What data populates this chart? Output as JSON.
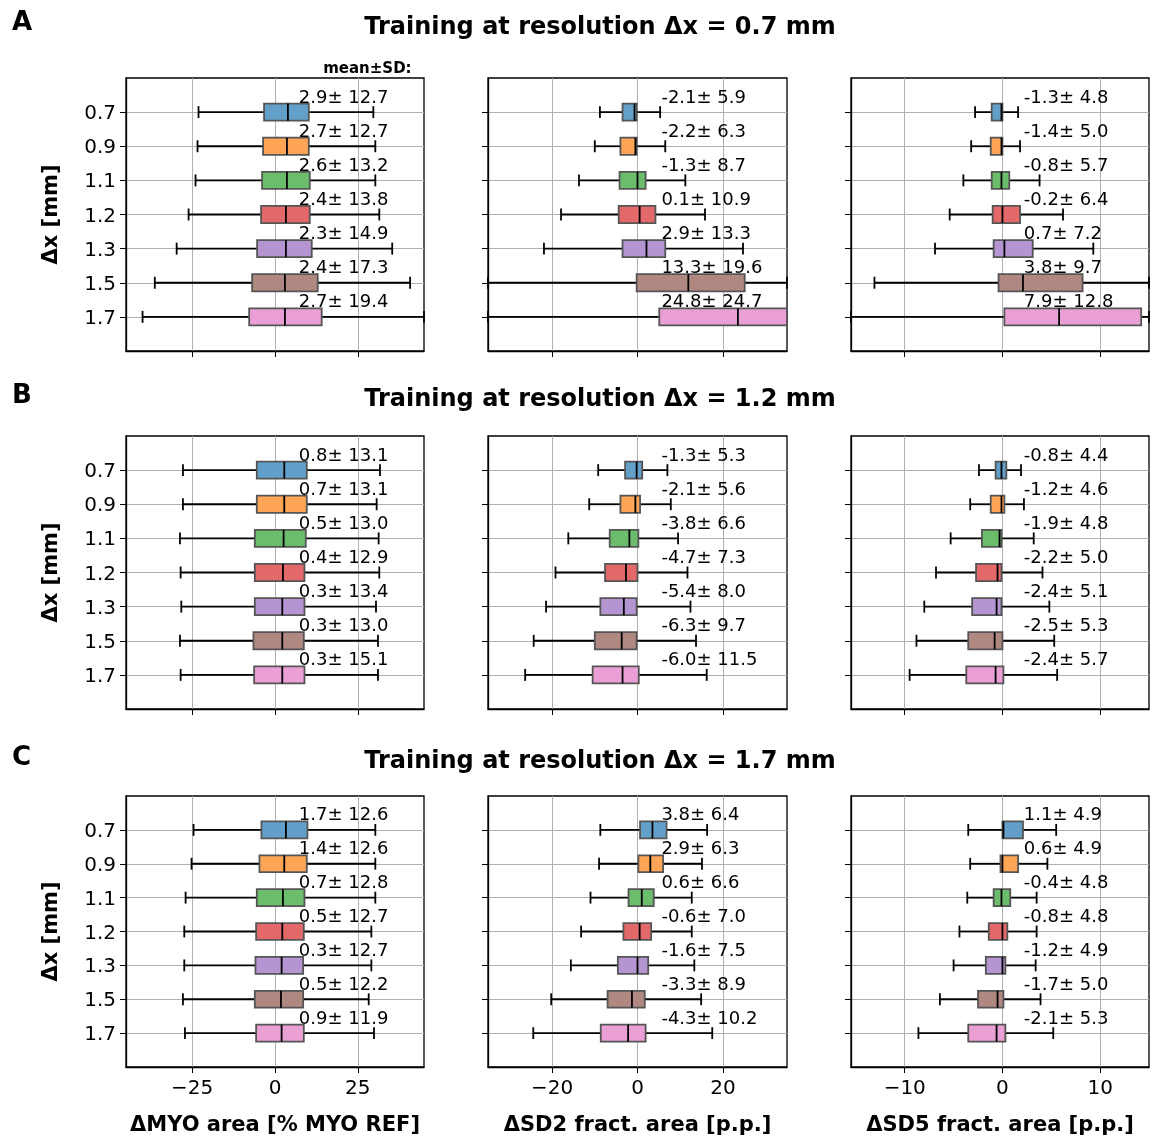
{
  "chart_data": [
    {
      "type": "box",
      "orientation": "horizontal",
      "categories": [
        "0.7",
        "0.9",
        "1.1",
        "1.2",
        "1.3",
        "1.5",
        "1.7"
      ],
      "colors": [
        "#62a0ca",
        "#ffa556",
        "#6bbd6b",
        "#e26869",
        "#b495d1",
        "#af8981",
        "#eba0d5"
      ],
      "xlim": [
        -45,
        45
      ],
      "xticks": [
        -25,
        0,
        25
      ],
      "grid": true,
      "tick_labels": "y",
      "ylabel": "Δx [mm]",
      "annotations": [
        "A",
        "mean±SD:"
      ],
      "value_labels": [
        "2.9± 12.7",
        "2.7± 12.7",
        "2.6± 13.2",
        "2.4± 13.8",
        "2.3± 14.9",
        "2.4± 17.3",
        "2.7± 19.4"
      ],
      "boxes": [
        {
          "low": -23.1,
          "q1": -3.3,
          "median": 3.9,
          "q3": 10.2,
          "high": 29.7
        },
        {
          "low": -23.4,
          "q1": -3.6,
          "median": 3.6,
          "q3": 10.2,
          "high": 30.3
        },
        {
          "low": -24,
          "q1": -3.9,
          "median": 3.6,
          "q3": 10.5,
          "high": 30.3
        },
        {
          "low": -26.1,
          "q1": -4.2,
          "median": 3.3,
          "q3": 10.5,
          "high": 31.5
        },
        {
          "low": -29.7,
          "q1": -5.4,
          "median": 3.3,
          "q3": 11.1,
          "high": 35.4
        },
        {
          "low": -36.3,
          "q1": -6.9,
          "median": 3,
          "q3": 12.9,
          "high": 40.8
        },
        {
          "low": -40,
          "q1": -7.8,
          "median": 3,
          "q3": 14.1,
          "high": 45
        }
      ]
    },
    {
      "type": "box",
      "orientation": "horizontal",
      "title": "Training at resolution Δx = 0.7 mm",
      "categories": [
        "0.7",
        "0.9",
        "1.1",
        "1.2",
        "1.3",
        "1.5",
        "1.7"
      ],
      "colors": [
        "#62a0ca",
        "#ffa556",
        "#6bbd6b",
        "#e26869",
        "#b495d1",
        "#af8981",
        "#eba0d5"
      ],
      "xlim": [
        -35,
        35
      ],
      "xticks": [
        -20,
        0,
        20
      ],
      "grid": true,
      "tick_labels": false,
      "value_labels": [
        "-2.1± 5.9",
        "-2.2± 6.3",
        "-1.3± 8.7",
        "0.1± 10.9",
        "2.9± 13.3",
        "13.3± 19.6",
        "24.8± 24.7"
      ],
      "boxes": [
        {
          "low": -8.8,
          "q1": -3.5,
          "median": -0.7,
          "q3": -0.2,
          "high": 5.3
        },
        {
          "low": -10,
          "q1": -4,
          "median": -0.5,
          "q3": -0.2,
          "high": 6.5
        },
        {
          "low": -13.7,
          "q1": -4.2,
          "median": 0,
          "q3": 1.9,
          "high": 11.2
        },
        {
          "low": -17.9,
          "q1": -4.4,
          "median": 0.5,
          "q3": 4.2,
          "high": 15.8
        },
        {
          "low": -21.9,
          "q1": -3.5,
          "median": 2.1,
          "q3": 6.5,
          "high": 24.7
        },
        {
          "low": -35,
          "q1": -0.2,
          "median": 11.9,
          "q3": 25.1,
          "high": 35
        },
        {
          "low": -35,
          "q1": 5.1,
          "median": 23.5,
          "q3": 35,
          "high": 35
        }
      ]
    },
    {
      "type": "box",
      "orientation": "horizontal",
      "categories": [
        "0.7",
        "0.9",
        "1.1",
        "1.2",
        "1.3",
        "1.5",
        "1.7"
      ],
      "colors": [
        "#62a0ca",
        "#ffa556",
        "#6bbd6b",
        "#e26869",
        "#b495d1",
        "#af8981",
        "#eba0d5"
      ],
      "xlim": [
        -15.5,
        15
      ],
      "xticks": [
        -10,
        0,
        10
      ],
      "grid": true,
      "tick_labels": false,
      "value_labels": [
        "-1.3± 4.8",
        "-1.4± 5.0",
        "-0.8± 5.7",
        "-0.2± 6.4",
        "0.7± 7.2",
        "3.8± 9.7",
        "7.9± 12.8"
      ],
      "boxes": [
        {
          "low": -2.8,
          "q1": -1.1,
          "median": -0.1,
          "q3": 0,
          "high": 1.6
        },
        {
          "low": -3.2,
          "q1": -1.2,
          "median": -0.1,
          "q3": 0,
          "high": 1.8
        },
        {
          "low": -4,
          "q1": -1.1,
          "median": -0.1,
          "q3": 0.7,
          "high": 3.8
        },
        {
          "low": -5.4,
          "q1": -1,
          "median": 0,
          "q3": 1.8,
          "high": 6.2
        },
        {
          "low": -6.9,
          "q1": -0.9,
          "median": 0.2,
          "q3": 3.1,
          "high": 9.3
        },
        {
          "low": -13.1,
          "q1": -0.4,
          "median": 2.1,
          "q3": 8.2,
          "high": 15
        },
        {
          "low": -15.5,
          "q1": 0.2,
          "median": 5.8,
          "q3": 14.2,
          "high": 15
        }
      ]
    },
    {
      "type": "box",
      "orientation": "horizontal",
      "categories": [
        "0.7",
        "0.9",
        "1.1",
        "1.2",
        "1.3",
        "1.5",
        "1.7"
      ],
      "colors": [
        "#62a0ca",
        "#ffa556",
        "#6bbd6b",
        "#e26869",
        "#b495d1",
        "#af8981",
        "#eba0d5"
      ],
      "xlim": [
        -45,
        45
      ],
      "xticks": [
        -25,
        0,
        25
      ],
      "grid": true,
      "tick_labels": "y",
      "ylabel": "Δx [mm]",
      "annotations": [
        "B"
      ],
      "value_labels": [
        "0.8± 13.1",
        "0.7± 13.1",
        "0.5± 13.0",
        "0.4± 12.9",
        "0.3± 13.4",
        "0.3± 13.0",
        "0.3± 15.1"
      ],
      "boxes": [
        {
          "low": -27.8,
          "q1": -5.5,
          "median": 2.8,
          "q3": 9.6,
          "high": 31.7
        },
        {
          "low": -27.8,
          "q1": -5.5,
          "median": 2.8,
          "q3": 9.6,
          "high": 30.7
        },
        {
          "low": -28.7,
          "q1": -6.1,
          "median": 2.6,
          "q3": 9.3,
          "high": 31.3
        },
        {
          "low": -28.5,
          "q1": -6.1,
          "median": 2.4,
          "q3": 8.9,
          "high": 31.5
        },
        {
          "low": -28.3,
          "q1": -6.1,
          "median": 2.2,
          "q3": 8.9,
          "high": 30.5
        },
        {
          "low": -28.7,
          "q1": -6.5,
          "median": 2.2,
          "q3": 8.7,
          "high": 31.1
        },
        {
          "low": -28.5,
          "q1": -6.3,
          "median": 2.2,
          "q3": 8.9,
          "high": 31.1
        }
      ]
    },
    {
      "type": "box",
      "orientation": "horizontal",
      "title": "Training at resolution Δx = 1.2 mm",
      "categories": [
        "0.7",
        "0.9",
        "1.1",
        "1.2",
        "1.3",
        "1.5",
        "1.7"
      ],
      "colors": [
        "#62a0ca",
        "#ffa556",
        "#6bbd6b",
        "#e26869",
        "#b495d1",
        "#af8981",
        "#eba0d5"
      ],
      "xlim": [
        -35,
        35
      ],
      "xticks": [
        -20,
        0,
        20
      ],
      "grid": true,
      "tick_labels": false,
      "value_labels": [
        "-1.3± 5.3",
        "-2.1± 5.6",
        "-3.8± 6.6",
        "-4.7± 7.3",
        "-5.4± 8.0",
        "-6.3± 9.7",
        "-6.0± 11.5"
      ],
      "boxes": [
        {
          "low": -9.2,
          "q1": -2.9,
          "median": -0.2,
          "q3": 1.1,
          "high": 7
        },
        {
          "low": -11.3,
          "q1": -4,
          "median": -0.5,
          "q3": 0.6,
          "high": 7.8
        },
        {
          "low": -16.2,
          "q1": -6.5,
          "median": -1.9,
          "q3": 0.2,
          "high": 9.5
        },
        {
          "low": -19.2,
          "q1": -7.6,
          "median": -2.7,
          "q3": 0,
          "high": 11.7
        },
        {
          "low": -21.4,
          "q1": -8.7,
          "median": -3.2,
          "q3": -0.2,
          "high": 12.4
        },
        {
          "low": -24.3,
          "q1": -10,
          "median": -3.7,
          "q3": -0.2,
          "high": 13.7
        },
        {
          "low": -26.3,
          "q1": -10.5,
          "median": -3.5,
          "q3": 0.3,
          "high": 16.2
        }
      ]
    },
    {
      "type": "box",
      "orientation": "horizontal",
      "categories": [
        "0.7",
        "0.9",
        "1.1",
        "1.2",
        "1.3",
        "1.5",
        "1.7"
      ],
      "colors": [
        "#62a0ca",
        "#ffa556",
        "#6bbd6b",
        "#e26869",
        "#b495d1",
        "#af8981",
        "#eba0d5"
      ],
      "xlim": [
        -15.5,
        15
      ],
      "xticks": [
        -10,
        0,
        10
      ],
      "grid": true,
      "tick_labels": false,
      "value_labels": [
        "-0.8± 4.4",
        "-1.2± 4.6",
        "-1.9± 4.8",
        "-2.2± 5.0",
        "-2.4± 5.1",
        "-2.5± 5.3",
        "-2.4± 5.7"
      ],
      "boxes": [
        {
          "low": -2.4,
          "q1": -0.7,
          "median": -0.1,
          "q3": 0.4,
          "high": 1.9
        },
        {
          "low": -3.3,
          "q1": -1.2,
          "median": -0.1,
          "q3": 0.2,
          "high": 2.2
        },
        {
          "low": -5.3,
          "q1": -2.1,
          "median": -0.3,
          "q3": -0.1,
          "high": 3.2
        },
        {
          "low": -6.8,
          "q1": -2.7,
          "median": -0.5,
          "q3": -0.1,
          "high": 4.1
        },
        {
          "low": -8,
          "q1": -3.1,
          "median": -0.6,
          "q3": -0.1,
          "high": 4.8
        },
        {
          "low": -8.8,
          "q1": -3.5,
          "median": -0.8,
          "q3": 0,
          "high": 5.3
        },
        {
          "low": -9.5,
          "q1": -3.7,
          "median": -0.7,
          "q3": 0.1,
          "high": 5.6
        }
      ]
    },
    {
      "type": "box",
      "orientation": "horizontal",
      "categories": [
        "0.7",
        "0.9",
        "1.1",
        "1.2",
        "1.3",
        "1.5",
        "1.7"
      ],
      "colors": [
        "#62a0ca",
        "#ffa556",
        "#6bbd6b",
        "#e26869",
        "#b495d1",
        "#af8981",
        "#eba0d5"
      ],
      "xlim": [
        -45,
        45
      ],
      "xticks": [
        -25,
        0,
        25
      ],
      "grid": true,
      "ylabel": "Δx [mm]",
      "xlabel": "ΔMYO area [% MYO REF]",
      "annotations": [
        "C"
      ],
      "value_labels": [
        "1.7± 12.6",
        "1.4± 12.6",
        "0.7± 12.8",
        "0.5± 12.7",
        "0.3± 12.7",
        "0.5± 12.2",
        "0.9± 11.9"
      ],
      "boxes": [
        {
          "low": -24.6,
          "q1": -4.1,
          "median": 3.3,
          "q3": 9.8,
          "high": 30.3
        },
        {
          "low": -25.2,
          "q1": -4.7,
          "median": 2.8,
          "q3": 9.6,
          "high": 30.3
        },
        {
          "low": -27,
          "q1": -5.5,
          "median": 2.4,
          "q3": 8.9,
          "high": 30.3
        },
        {
          "low": -27.4,
          "q1": -5.7,
          "median": 2.2,
          "q3": 8.7,
          "high": 29.1
        },
        {
          "low": -27.4,
          "q1": -5.9,
          "median": 2,
          "q3": 8.5,
          "high": 29.1
        },
        {
          "low": -27.8,
          "q1": -6.1,
          "median": 1.8,
          "q3": 8.5,
          "high": 28.3
        },
        {
          "low": -27.2,
          "q1": -5.7,
          "median": 2,
          "q3": 8.7,
          "high": 29.9
        }
      ]
    },
    {
      "type": "box",
      "orientation": "horizontal",
      "title": "Training at resolution Δx = 1.7 mm",
      "categories": [
        "0.7",
        "0.9",
        "1.1",
        "1.2",
        "1.3",
        "1.5",
        "1.7"
      ],
      "colors": [
        "#62a0ca",
        "#ffa556",
        "#6bbd6b",
        "#e26869",
        "#b495d1",
        "#af8981",
        "#eba0d5"
      ],
      "xlim": [
        -35,
        35
      ],
      "xticks": [
        -20,
        0,
        20
      ],
      "grid": true,
      "tick_labels": "x",
      "xlabel": "ΔSD2 fract. area [p.p.]",
      "value_labels": [
        "3.8± 6.4",
        "2.9± 6.3",
        "0.6± 6.6",
        "-0.6± 7.0",
        "-1.6± 7.5",
        "-3.3± 8.9",
        "-4.3± 10.2"
      ],
      "boxes": [
        {
          "low": -8.7,
          "q1": 0.6,
          "median": 3.5,
          "q3": 6.8,
          "high": 16.3
        },
        {
          "low": -9,
          "q1": 0.2,
          "median": 3,
          "q3": 6,
          "high": 15.1
        },
        {
          "low": -11,
          "q1": -2.1,
          "median": 1,
          "q3": 3.8,
          "high": 12.7
        },
        {
          "low": -13.2,
          "q1": -3.3,
          "median": 0.5,
          "q3": 3.2,
          "high": 12.7
        },
        {
          "low": -15.6,
          "q1": -4.6,
          "median": 0,
          "q3": 2.5,
          "high": 13.3
        },
        {
          "low": -20.2,
          "q1": -7,
          "median": -1.3,
          "q3": 1.7,
          "high": 14.9
        },
        {
          "low": -24.4,
          "q1": -8.6,
          "median": -2.2,
          "q3": 1.9,
          "high": 17.5
        }
      ]
    },
    {
      "type": "box",
      "orientation": "horizontal",
      "categories": [
        "0.7",
        "0.9",
        "1.1",
        "1.2",
        "1.3",
        "1.5",
        "1.7"
      ],
      "colors": [
        "#62a0ca",
        "#ffa556",
        "#6bbd6b",
        "#e26869",
        "#b495d1",
        "#af8981",
        "#eba0d5"
      ],
      "xlim": [
        -15.5,
        15
      ],
      "xticks": [
        -10,
        0,
        10
      ],
      "grid": true,
      "tick_labels": "x",
      "xlabel": "ΔSD5 fract. area [p.p.]",
      "value_labels": [
        "1.1± 4.9",
        "0.6± 4.9",
        "-0.4± 4.8",
        "-0.8± 4.8",
        "-1.2± 4.9",
        "-1.7± 5.0",
        "-2.1± 5.3"
      ],
      "boxes": [
        {
          "low": -3.5,
          "q1": 0,
          "median": 0.1,
          "q3": 2.1,
          "high": 5.5
        },
        {
          "low": -3.3,
          "q1": -0.2,
          "median": 0,
          "q3": 1.6,
          "high": 4.6
        },
        {
          "low": -3.6,
          "q1": -0.9,
          "median": -0.1,
          "q3": 0.8,
          "high": 3.5
        },
        {
          "low": -4.4,
          "q1": -1.4,
          "median": 0,
          "q3": 0.5,
          "high": 3.5
        },
        {
          "low": -5,
          "q1": -1.7,
          "median": 0,
          "q3": 0.3,
          "high": 3.4
        },
        {
          "low": -6.4,
          "q1": -2.5,
          "median": -0.5,
          "q3": 0.1,
          "high": 3.9
        },
        {
          "low": -8.6,
          "q1": -3.5,
          "median": -0.6,
          "q3": 0.3,
          "high": 5.2
        }
      ]
    }
  ]
}
